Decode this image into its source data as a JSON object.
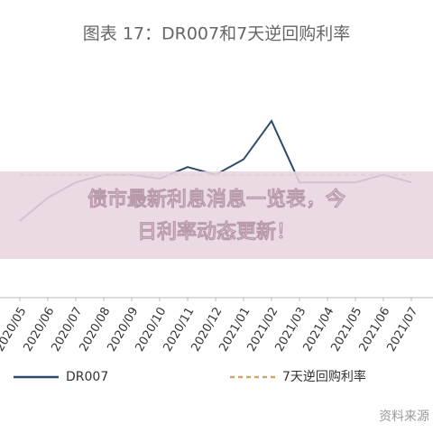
{
  "chart_data": {
    "type": "line",
    "title": "图表 17：DR007和7天逆回购利率",
    "categories": [
      "2020/05",
      "2020/06",
      "2020/07",
      "2020/08",
      "2020/09",
      "2020/10",
      "2020/11",
      "2020/12",
      "2021/01",
      "2021/02",
      "2021/03",
      "2021/04",
      "2021/05",
      "2021/06",
      "2021/07"
    ],
    "series": [
      {
        "name": "DR007",
        "color": "#2e4a6b",
        "dash": false,
        "values": [
          1.6,
          1.9,
          2.1,
          2.2,
          2.2,
          2.15,
          2.3,
          2.2,
          2.4,
          2.9,
          2.1,
          2.1,
          2.1,
          2.2,
          2.1
        ]
      },
      {
        "name": "7天逆回购利率",
        "color": "#c8a96a",
        "dash": true,
        "values": [
          2.2,
          2.2,
          2.2,
          2.2,
          2.2,
          2.2,
          2.2,
          2.2,
          2.2,
          2.2,
          2.2,
          2.2,
          2.2,
          2.2,
          2.2
        ]
      }
    ],
    "ylim": [
      0.6,
      3.3
    ],
    "source": "资料来源"
  },
  "banner": {
    "lines": [
      "债市最新利息消息一览表，今",
      "日利率动态更新！"
    ]
  }
}
